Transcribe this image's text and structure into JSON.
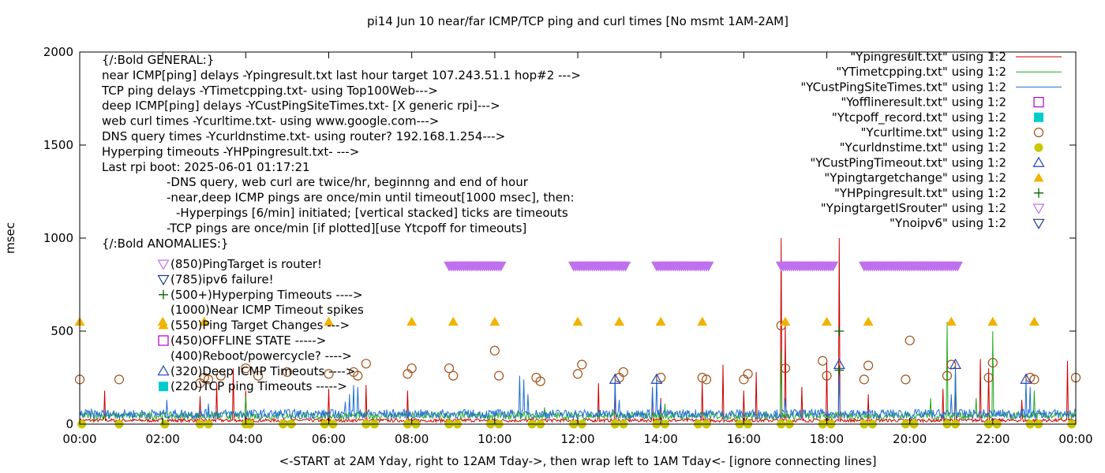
{
  "chart_data": {
    "type": "line",
    "title": "pi14 Jun 10  near/far ICMP/TCP ping and curl times [No msmt 1AM-2AM]",
    "xlabel": "<-START at 2AM Yday, right to 12AM Tday->, then wrap left to 1AM Tday<- [ignore connecting lines]",
    "ylabel": "msec",
    "xlim": [
      0,
      24
    ],
    "ylim": [
      0,
      2000
    ],
    "x_ticks": [
      "00:00",
      "02:00",
      "04:00",
      "06:00",
      "08:00",
      "10:00",
      "12:00",
      "14:00",
      "16:00",
      "18:00",
      "20:00",
      "22:00",
      "00:00"
    ],
    "y_ticks": [
      0,
      500,
      1000,
      1500,
      2000
    ],
    "grid": false,
    "legend_position": "top-right",
    "legend": [
      {
        "label": "\"Ypingresult.txt\" using 1:2",
        "style": "line",
        "color": "#cc0000",
        "icon": "line"
      },
      {
        "label": "\"YTimetcpping.txt\" using 1:2",
        "style": "line",
        "color": "#22aa22",
        "icon": "line"
      },
      {
        "label": "\"YCustPingSiteTimes.txt\" using 1:2",
        "style": "line",
        "color": "#1f6fd6",
        "icon": "line"
      },
      {
        "label": "\"Yofflineresult.txt\" using 1:2",
        "style": "point",
        "color": "#aa00cc",
        "icon": "open-square"
      },
      {
        "label": "\"Ytcpoff_record.txt\" using 1:2",
        "style": "point",
        "color": "#00cccc",
        "icon": "filled-square"
      },
      {
        "label": "\"Ycurltime.txt\" using 1:2",
        "style": "point",
        "color": "#a0521a",
        "icon": "open-circle"
      },
      {
        "label": "\"Ycurldnstime.txt\" using 1:2",
        "style": "point",
        "color": "#c8c800",
        "icon": "filled-circle"
      },
      {
        "label": "\"YCustPingTimeout.txt\" using 1:2",
        "style": "point",
        "color": "#2244bb",
        "icon": "open-triangle-up"
      },
      {
        "label": "\"Ypingtargetchange\" using 1:2",
        "style": "point",
        "color": "#f2b300",
        "icon": "filled-triangle-up"
      },
      {
        "label": "\"YHPpingresult.txt\" using 1:2",
        "style": "point",
        "color": "#006600",
        "icon": "plus"
      },
      {
        "label": "\"YpingtargetISrouter\" using 1:2",
        "style": "point",
        "color": "#c070ee",
        "icon": "open-triangle-down"
      },
      {
        "label": "\"Ynoipv6\" using 1:2",
        "style": "point",
        "color": "#203a8c",
        "icon": "open-triangle-down"
      }
    ],
    "notes": [
      "{/:Bold GENERAL:}",
      "near ICMP[ping] delays -Ypingresult.txt last hour target 107.243.51.1 hop#2 --->",
      "TCP ping delays -YTimetcpping.txt- using Top100Web--->",
      "deep ICMP[ping] delays -YCustPingSiteTimes.txt- [X generic rpi]--->",
      "web curl times -Ycurltime.txt- using www.google.com--->",
      "DNS query times -Ycurldnstime.txt- using router? 192.168.1.254--->",
      "Hyperping timeouts -YHPpingresult.txt- --->",
      "Last rpi boot: 2025-06-01 01:17:21",
      "-DNS query, web curl are twice/hr, beginnng and end of hour",
      "-near,deep ICMP pings are once/min until timeout[1000 msec], then:",
      "-Hyperpings [6/min] initiated; [vertical stacked] ticks are timeouts",
      "-TCP pings are once/min [if plotted][use Ytcpoff for timeouts]",
      "{/:Bold ANOMALIES:}"
    ],
    "anomalies": [
      {
        "icon": "open-triangle-down",
        "color": "#c070ee",
        "label": "(850)PingTarget is router!"
      },
      {
        "icon": "open-triangle-down",
        "color": "#203a8c",
        "label": "(785)ipv6 failure!"
      },
      {
        "icon": "plus",
        "color": "#006600",
        "label": "(500+)Hyperping Timeouts ---->"
      },
      {
        "icon": "none",
        "color": "#000000",
        "label": "(1000)Near ICMP Timeout spikes"
      },
      {
        "icon": "filled-triangle-up",
        "color": "#f2b300",
        "label": "(550)Ping Target Changes --->"
      },
      {
        "icon": "open-square",
        "color": "#aa00cc",
        "label": "(450)OFFLINE STATE ----->"
      },
      {
        "icon": "none",
        "color": "#000000",
        "label": "(400)Reboot/powercycle? ---->"
      },
      {
        "icon": "open-triangle-up",
        "color": "#2244bb",
        "label": "(320)Deep ICMP Timeouts ---->"
      },
      {
        "icon": "filled-square",
        "color": "#00cccc",
        "label": "(220)TCP ping Timeouts ----->"
      }
    ],
    "series": [
      {
        "name": "\"Ypingresult.txt\" using 1:2",
        "type": "line",
        "color": "#cc0000",
        "baseline": 20,
        "spikes": [
          [
            0.6,
            180
          ],
          [
            2.9,
            150
          ],
          [
            3.3,
            220
          ],
          [
            3.7,
            300
          ],
          [
            4.0,
            180
          ],
          [
            6.0,
            190
          ],
          [
            6.9,
            210
          ],
          [
            7.9,
            180
          ],
          [
            12.5,
            220
          ],
          [
            12.9,
            160
          ],
          [
            13.8,
            190
          ],
          [
            14.0,
            140
          ],
          [
            15.0,
            230
          ],
          [
            15.5,
            320
          ],
          [
            16.0,
            180
          ],
          [
            16.3,
            280
          ],
          [
            16.9,
            1000
          ],
          [
            17.0,
            550
          ],
          [
            17.4,
            200
          ],
          [
            18.0,
            330
          ],
          [
            18.3,
            1000
          ],
          [
            19.0,
            160
          ],
          [
            20.8,
            190
          ],
          [
            21.1,
            230
          ],
          [
            21.7,
            350
          ],
          [
            21.9,
            300
          ],
          [
            22.7,
            130
          ],
          [
            23.8,
            340
          ]
        ]
      },
      {
        "name": "\"YTimetcpping.txt\" using 1:2",
        "type": "line",
        "color": "#22aa22",
        "baseline": 45,
        "spikes": [
          [
            4.0,
            150
          ],
          [
            11.2,
            90
          ],
          [
            14.1,
            110
          ],
          [
            16.9,
            400
          ],
          [
            20.5,
            140
          ],
          [
            20.9,
            550
          ],
          [
            21.1,
            300
          ],
          [
            21.6,
            140
          ],
          [
            22.0,
            500
          ],
          [
            23.0,
            180
          ]
        ]
      },
      {
        "name": "\"YCustPingSiteTimes.txt\" using 1:2",
        "type": "line",
        "color": "#1f6fd6",
        "baseline": 55,
        "spikes": [
          [
            2.1,
            130
          ],
          [
            3.1,
            110
          ],
          [
            6.4,
            120
          ],
          [
            6.5,
            160
          ],
          [
            6.6,
            210
          ],
          [
            6.7,
            200
          ],
          [
            10.6,
            260
          ],
          [
            10.7,
            240
          ],
          [
            10.8,
            160
          ],
          [
            12.9,
            250
          ],
          [
            13.0,
            130
          ],
          [
            13.8,
            200
          ],
          [
            13.9,
            250
          ],
          [
            14.0,
            120
          ],
          [
            17.0,
            140
          ],
          [
            18.3,
            280
          ],
          [
            21.0,
            160
          ],
          [
            21.1,
            310
          ],
          [
            22.8,
            240
          ],
          [
            22.9,
            200
          ]
        ]
      },
      {
        "name": "\"Ycurltime.txt\" using 1:2",
        "type": "scatter",
        "marker": "open-circle",
        "color": "#a0521a",
        "x": [
          0.0,
          0.95,
          2.9,
          3.0,
          3.1,
          3.4,
          4.0,
          4.3,
          5.0,
          6.0,
          6.6,
          6.7,
          6.9,
          7.9,
          8.0,
          8.9,
          9.0,
          10.0,
          10.1,
          11.0,
          11.1,
          12.0,
          12.1,
          13.0,
          13.1,
          14.0,
          15.0,
          15.1,
          16.0,
          16.1,
          16.9,
          17.0,
          17.9,
          18.0,
          18.9,
          19.0,
          19.9,
          20.0,
          20.9,
          21.0,
          21.9,
          22.0,
          22.9,
          23.0,
          24.0
        ],
        "y": [
          240,
          240,
          220,
          250,
          240,
          260,
          300,
          260,
          280,
          270,
          280,
          260,
          325,
          270,
          300,
          300,
          260,
          395,
          260,
          250,
          230,
          270,
          320,
          250,
          280,
          250,
          250,
          240,
          240,
          270,
          530,
          300,
          340,
          260,
          240,
          315,
          240,
          450,
          260,
          320,
          250,
          330,
          250,
          240,
          250
        ]
      },
      {
        "name": "\"Ycurldnstime.txt\" using 1:2",
        "type": "scatter",
        "marker": "filled-circle",
        "color": "#c8c800",
        "x": [
          0.05,
          0.95,
          2.05,
          2.9,
          3.1,
          4.0,
          4.1,
          4.9,
          5.1,
          5.9,
          6.1,
          6.9,
          7.1,
          7.9,
          8.1,
          8.9,
          9.1,
          9.9,
          10.1,
          10.9,
          11.1,
          11.9,
          12.1,
          12.9,
          13.1,
          13.9,
          14.1,
          14.9,
          15.1,
          15.9,
          16.1,
          16.9,
          17.1,
          17.9,
          18.1,
          18.9,
          19.1,
          19.9,
          20.1,
          20.9,
          21.1,
          21.9,
          22.1,
          22.9,
          23.1,
          23.9
        ],
        "y": [
          0,
          0,
          0,
          0,
          0,
          0,
          0,
          0,
          0,
          0,
          0,
          0,
          0,
          0,
          0,
          0,
          0,
          0,
          0,
          0,
          0,
          0,
          0,
          0,
          0,
          0,
          0,
          0,
          0,
          0,
          0,
          0,
          0,
          0,
          0,
          0,
          0,
          0,
          0,
          0,
          0,
          0,
          0,
          0,
          0,
          0
        ]
      },
      {
        "name": "\"Ypingtargetchange\" using 1:2",
        "type": "scatter",
        "marker": "filled-triangle-up",
        "color": "#f2b300",
        "x": [
          0.0,
          2.0,
          3.0,
          6.0,
          8.0,
          9.0,
          10.0,
          12.0,
          13.0,
          14.0,
          15.0,
          17.0,
          18.0,
          19.0,
          21.0,
          22.0,
          23.0
        ],
        "y": [
          550,
          550,
          550,
          550,
          550,
          550,
          550,
          550,
          550,
          550,
          550,
          550,
          550,
          550,
          550,
          550,
          550
        ]
      },
      {
        "name": "\"YCustPingTimeout.txt\" using 1:2",
        "type": "scatter",
        "marker": "open-triangle-up",
        "color": "#2244bb",
        "x": [
          12.9,
          13.9,
          18.3,
          21.1,
          22.8
        ],
        "y": [
          240,
          240,
          320,
          320,
          240
        ]
      },
      {
        "name": "\"YHPpingresult.txt\" using 1:2",
        "type": "scatter",
        "marker": "plus",
        "color": "#006600",
        "x": [
          18.3,
          18.3
        ],
        "y": [
          500,
          290
        ]
      },
      {
        "name": "\"YpingtargetISrouter\" using 1:2",
        "type": "band",
        "marker": "open-triangle-down",
        "color": "#c070ee",
        "y": 850,
        "ranges": [
          [
            8.9,
            10.15
          ],
          [
            11.9,
            13.15
          ],
          [
            13.9,
            15.15
          ],
          [
            16.9,
            18.15
          ],
          [
            18.9,
            21.15
          ]
        ]
      },
      {
        "name": "\"Yofflineresult.txt\" using 1:2",
        "type": "scatter",
        "marker": "open-square",
        "color": "#aa00cc",
        "x": [],
        "y": []
      },
      {
        "name": "\"Ytcpoff_record.txt\" using 1:2",
        "type": "scatter",
        "marker": "filled-square",
        "color": "#00cccc",
        "x": [],
        "y": []
      },
      {
        "name": "\"Ynoipv6\" using 1:2",
        "type": "scatter",
        "marker": "open-triangle-down",
        "color": "#203a8c",
        "x": [],
        "y": []
      }
    ]
  }
}
